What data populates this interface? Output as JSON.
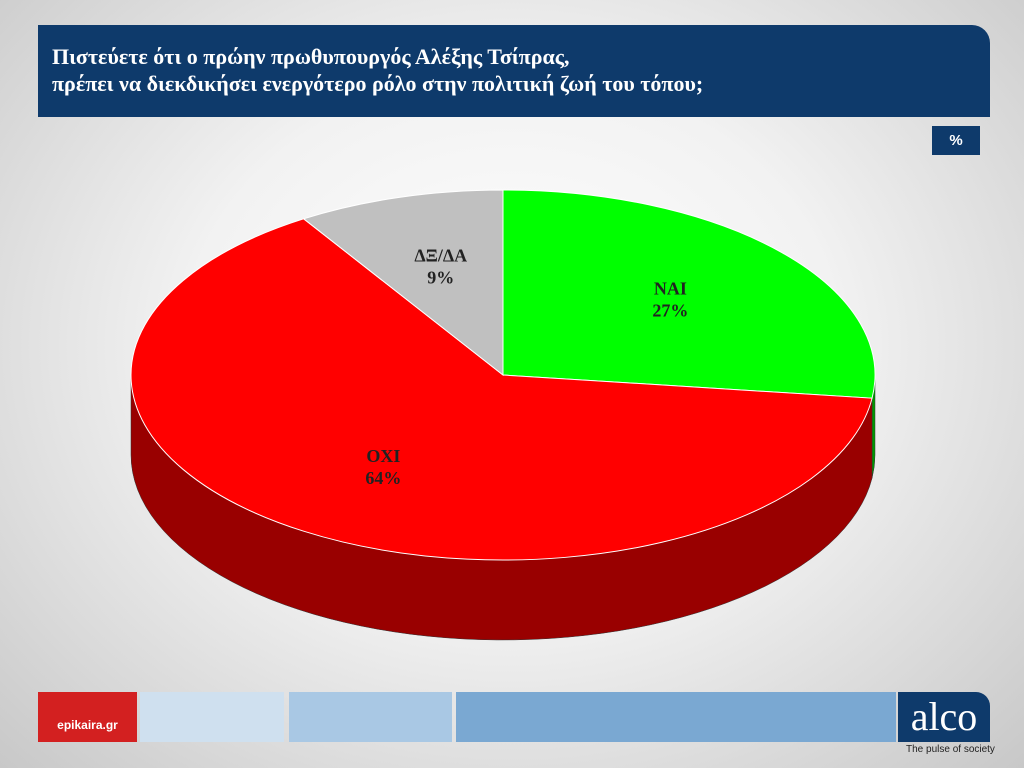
{
  "chart_data": {
    "type": "pie",
    "title": "Πιστεύετε ότι ο πρώην πρωθυπουργός Αλέξης Τσίπρας,\nπρέπει να διεκδικήσει ενεργότερο ρόλο στην πολιτική ζωή του τόπου;",
    "unit_label": "%",
    "categories": [
      "ΝΑΙ",
      "ΟΧΙ",
      "ΔΞ/ΔΑ"
    ],
    "values": [
      27,
      64,
      9
    ],
    "value_labels": [
      "27%",
      "64%",
      "9%"
    ],
    "colors": [
      "#00ff00",
      "#ff0000",
      "#c0c0c0"
    ]
  },
  "footer": {
    "left_logo": "epikaira.gr",
    "brand": "alco",
    "tagline": "The pulse of society"
  }
}
